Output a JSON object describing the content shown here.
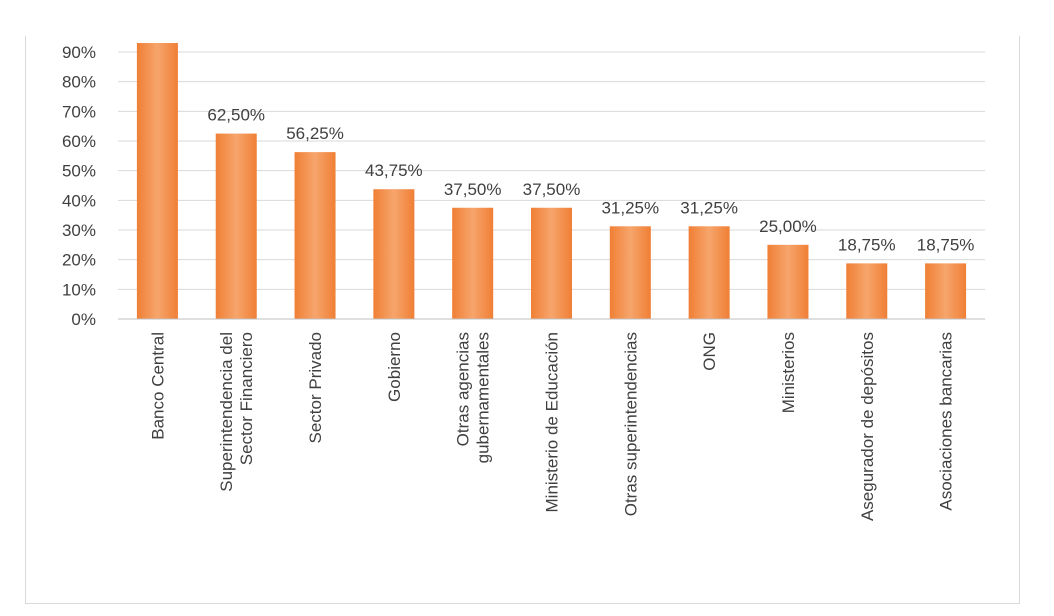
{
  "chart_data": {
    "type": "bar",
    "title": "",
    "xlabel": "",
    "ylabel": "",
    "ylim": [
      0,
      0.9
    ],
    "yticks": [
      "0%",
      "10%",
      "20%",
      "30%",
      "40%",
      "50%",
      "60%",
      "70%",
      "80%",
      "90%"
    ],
    "grid": true,
    "legend": "none",
    "bar_color": "#f07f35",
    "bar_color_light": "#f6a56c",
    "categories": [
      [
        "Banco Central"
      ],
      [
        "Superintendencia del",
        "Sector Financiero"
      ],
      [
        "Sector Privado"
      ],
      [
        "Gobierno"
      ],
      [
        "Otras agencias",
        "gubernamentales"
      ],
      [
        "Ministerio de Educación"
      ],
      [
        "Otras superintendencias"
      ],
      [
        "ONG"
      ],
      [
        "Ministerios"
      ],
      [
        "Asegurador de depósitos"
      ],
      [
        "Asociaciones bancarias"
      ]
    ],
    "values": [
      0.9375,
      0.625,
      0.5625,
      0.4375,
      0.375,
      0.375,
      0.3125,
      0.3125,
      0.25,
      0.1875,
      0.1875
    ],
    "data_labels": [
      "",
      "62,50%",
      "56,25%",
      "43,75%",
      "37,50%",
      "37,50%",
      "31,25%",
      "31,25%",
      "25,00%",
      "18,75%",
      "18,75%"
    ]
  }
}
